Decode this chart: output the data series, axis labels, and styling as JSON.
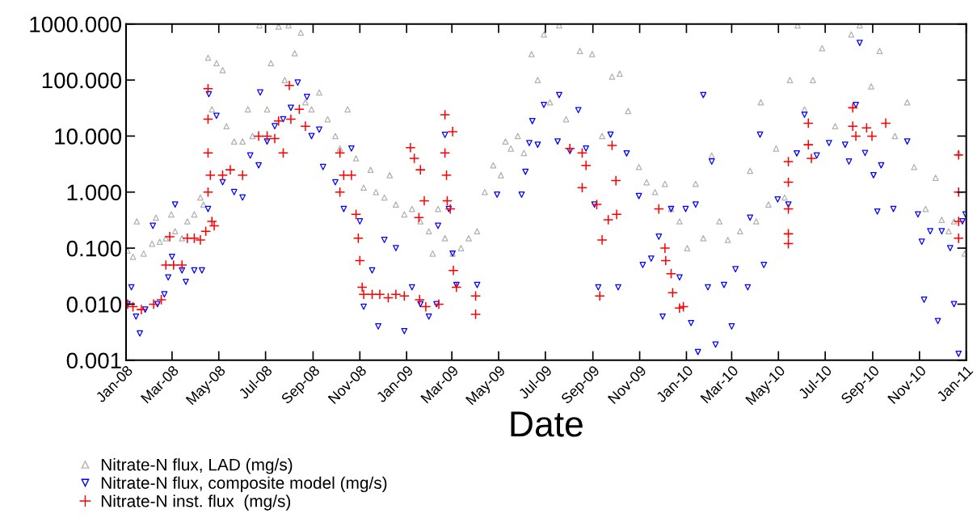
{
  "chart_data": {
    "type": "scatter",
    "xlabel": "Date",
    "log": "y",
    "grid": false,
    "legend": "bottom left",
    "xlim": [
      "2008-01-01",
      "2011-01-01"
    ],
    "ylim": [
      0.001,
      1000
    ],
    "xticks": [
      {
        "value": "2008-01-01",
        "label": "Jan-08"
      },
      {
        "value": "2008-03-01",
        "label": "Mar-08"
      },
      {
        "value": "2008-05-01",
        "label": "May-08"
      },
      {
        "value": "2008-07-01",
        "label": "Jul-08"
      },
      {
        "value": "2008-09-01",
        "label": "Sep-08"
      },
      {
        "value": "2008-11-01",
        "label": "Nov-08"
      },
      {
        "value": "2009-01-01",
        "label": "Jan-09"
      },
      {
        "value": "2009-03-01",
        "label": "Mar-09"
      },
      {
        "value": "2009-05-01",
        "label": "May-09"
      },
      {
        "value": "2009-07-01",
        "label": "Jul-09"
      },
      {
        "value": "2009-09-01",
        "label": "Sep-09"
      },
      {
        "value": "2009-11-01",
        "label": "Nov-09"
      },
      {
        "value": "2010-01-01",
        "label": "Jan-10"
      },
      {
        "value": "2010-03-01",
        "label": "Mar-10"
      },
      {
        "value": "2010-05-01",
        "label": "May-10"
      },
      {
        "value": "2010-07-01",
        "label": "Jul-10"
      },
      {
        "value": "2010-09-01",
        "label": "Sep-10"
      },
      {
        "value": "2010-11-01",
        "label": "Nov-10"
      },
      {
        "value": "2011-01-01",
        "label": "Jan-11"
      }
    ],
    "yticks": [
      {
        "value": 0.001,
        "label": "0.001"
      },
      {
        "value": 0.01,
        "label": "0.010"
      },
      {
        "value": 0.1,
        "label": "0.100"
      },
      {
        "value": 1,
        "label": "1.000"
      },
      {
        "value": 10,
        "label": "10.000"
      },
      {
        "value": 100,
        "label": "100.000"
      },
      {
        "value": 1000,
        "label": "1000.000"
      }
    ],
    "series": [
      {
        "name": "Nitrate-N flux, LAD (mg/s)",
        "color": "#b2b2b2",
        "marker": "triangle",
        "x": [
          "2008-01-03",
          "2008-01-10",
          "2008-01-15",
          "2008-01-24",
          "2008-02-04",
          "2008-02-09",
          "2008-02-14",
          "2008-02-22",
          "2008-02-29",
          "2008-03-05",
          "2008-03-14",
          "2008-03-21",
          "2008-03-30",
          "2008-04-07",
          "2008-04-11",
          "2008-04-17",
          "2008-04-22",
          "2008-04-28",
          "2008-05-06",
          "2008-05-11",
          "2008-05-21",
          "2008-06-01",
          "2008-06-08",
          "2008-06-14",
          "2008-06-23",
          "2008-07-03",
          "2008-07-08",
          "2008-07-18",
          "2008-07-26",
          "2008-07-31",
          "2008-08-08",
          "2008-08-16",
          "2008-08-22",
          "2008-08-30",
          "2008-09-09",
          "2008-09-20",
          "2008-09-30",
          "2008-10-06",
          "2008-10-16",
          "2008-10-27",
          "2008-11-06",
          "2008-11-15",
          "2008-11-22",
          "2008-12-03",
          "2008-12-10",
          "2008-12-18",
          "2008-12-29",
          "2009-01-08",
          "2009-01-19",
          "2009-01-30",
          "2009-02-04",
          "2009-02-11",
          "2009-02-20",
          "2009-03-02",
          "2009-03-13",
          "2009-03-23",
          "2009-04-03",
          "2009-04-13",
          "2009-04-24",
          "2009-05-04",
          "2009-05-10",
          "2009-05-17",
          "2009-05-26",
          "2009-06-03",
          "2009-06-13",
          "2009-06-21",
          "2009-06-29",
          "2009-07-07",
          "2009-07-19",
          "2009-07-28",
          "2009-08-15",
          "2009-08-31",
          "2009-09-13",
          "2009-09-26",
          "2009-10-06",
          "2009-10-17",
          "2009-10-31",
          "2009-11-10",
          "2009-11-21",
          "2009-12-04",
          "2009-12-12",
          "2009-12-23",
          "2010-01-02",
          "2010-01-13",
          "2010-01-23",
          "2010-02-03",
          "2010-02-13",
          "2010-02-24",
          "2010-03-12",
          "2010-03-25",
          "2010-04-02",
          "2010-04-08",
          "2010-04-18",
          "2010-04-28",
          "2010-05-09",
          "2010-05-16",
          "2010-05-26",
          "2010-06-04",
          "2010-06-15",
          "2010-06-27",
          "2010-07-14",
          "2010-08-04",
          "2010-08-15",
          "2010-08-30",
          "2010-09-10",
          "2010-09-30",
          "2010-10-16",
          "2010-10-25",
          "2010-11-09",
          "2010-11-22",
          "2010-11-30",
          "2010-12-09",
          "2010-12-16",
          "2010-12-22",
          "2010-12-30"
        ],
        "values": [
          0.09,
          0.07,
          0.3,
          0.08,
          0.12,
          0.35,
          0.13,
          0.15,
          0.4,
          0.2,
          0.15,
          0.3,
          0.4,
          0.8,
          0.6,
          250,
          30,
          200,
          150,
          15,
          8,
          8,
          30,
          10,
          950,
          30,
          200,
          900,
          100,
          950,
          300,
          700,
          40,
          30,
          60,
          20,
          10,
          6,
          30,
          4,
          1.2,
          2.5,
          1,
          0.8,
          2,
          0.6,
          0.4,
          0.5,
          0.3,
          0.2,
          0.08,
          0.5,
          0.15,
          0.08,
          0.1,
          0.15,
          0.2,
          1.0,
          3,
          2,
          8,
          6,
          10,
          5,
          290,
          100,
          650,
          40,
          950,
          20,
          330,
          290,
          10,
          115,
          130,
          28,
          2.8,
          1.5,
          1,
          1.4,
          0.5,
          0.3,
          0.1,
          1.4,
          0.15,
          4.5,
          0.3,
          0.14,
          0.2,
          2.4,
          0.3,
          40,
          0.6,
          6,
          0.8,
          100,
          950,
          30,
          100,
          370,
          15,
          650,
          950,
          77,
          330,
          10,
          40,
          2.8,
          0.5,
          1.8,
          0.32,
          0.2,
          0.3,
          5,
          0.08
        ]
      },
      {
        "name": "Nitrate-N flux, composite model (mg/s)",
        "color": "#0000ff",
        "marker": "triangle-down",
        "x": [
          "2008-01-03",
          "2008-01-08",
          "2008-01-14",
          "2008-01-19",
          "2008-01-26",
          "2008-02-05",
          "2008-02-11",
          "2008-02-20",
          "2008-02-25",
          "2008-03-01",
          "2008-03-05",
          "2008-03-14",
          "2008-03-19",
          "2008-03-30",
          "2008-04-09",
          "2008-04-17",
          "2008-04-18",
          "2008-04-28",
          "2008-05-06",
          "2008-05-21",
          "2008-06-01",
          "2008-06-11",
          "2008-06-22",
          "2008-06-24",
          "2008-07-03",
          "2008-07-13",
          "2008-07-24",
          "2008-08-03",
          "2008-08-12",
          "2008-08-24",
          "2008-08-30",
          "2008-09-09",
          "2008-09-14",
          "2008-09-30",
          "2008-10-11",
          "2008-10-21",
          "2008-11-01",
          "2008-11-06",
          "2008-11-17",
          "2008-11-25",
          "2008-12-03",
          "2008-12-18",
          "2008-12-29",
          "2009-01-08",
          "2009-01-19",
          "2009-01-30",
          "2009-02-09",
          "2009-02-11",
          "2009-02-20",
          "2009-02-25",
          "2009-03-02",
          "2009-03-07",
          "2009-04-03",
          "2009-04-29",
          "2009-05-31",
          "2009-06-05",
          "2009-06-10",
          "2009-06-14",
          "2009-06-21",
          "2009-06-29",
          "2009-07-17",
          "2009-07-19",
          "2009-08-02",
          "2009-08-13",
          "2009-08-23",
          "2009-09-03",
          "2009-09-08",
          "2009-09-24",
          "2009-10-04",
          "2009-10-15",
          "2009-10-31",
          "2009-11-05",
          "2009-11-16",
          "2009-11-26",
          "2009-12-01",
          "2009-12-12",
          "2009-12-23",
          "2009-12-31",
          "2010-01-07",
          "2010-01-13",
          "2010-01-16",
          "2010-01-23",
          "2010-01-29",
          "2010-02-03",
          "2010-02-08",
          "2010-02-19",
          "2010-03-01",
          "2010-03-06",
          "2010-03-22",
          "2010-03-25",
          "2010-04-07",
          "2010-04-12",
          "2010-04-30",
          "2010-05-14",
          "2010-05-25",
          "2010-06-04",
          "2010-06-20",
          "2010-07-06",
          "2010-07-27",
          "2010-08-01",
          "2010-08-10",
          "2010-08-15",
          "2010-08-22",
          "2010-09-02",
          "2010-09-07",
          "2010-09-12",
          "2010-09-28",
          "2010-10-16",
          "2010-10-30",
          "2010-11-04",
          "2010-11-07",
          "2010-11-15",
          "2010-11-25",
          "2010-11-30",
          "2010-12-11",
          "2010-12-16",
          "2010-12-22",
          "2010-12-27",
          "2010-12-31"
        ],
        "values": [
          0.01,
          0.02,
          0.006,
          0.003,
          0.008,
          0.25,
          0.01,
          0.015,
          0.03,
          0.07,
          0.6,
          0.04,
          0.025,
          0.04,
          0.04,
          0.5,
          56,
          23,
          1.5,
          1,
          0.8,
          4.5,
          3,
          60,
          8,
          15,
          20,
          32,
          90,
          50,
          10,
          13,
          2.8,
          1.5,
          0.5,
          6,
          0.3,
          0.009,
          0.04,
          0.004,
          0.14,
          0.1,
          0.0033,
          0.02,
          0.01,
          0.006,
          0.01,
          0.25,
          10.5,
          0.5,
          0.08,
          0.022,
          0.022,
          0.9,
          0.9,
          2.3,
          7.5,
          18.5,
          7,
          36,
          8,
          54,
          5.4,
          29,
          6,
          0.6,
          0.02,
          10.6,
          0.02,
          4.9,
          0.85,
          0.05,
          0.065,
          0.16,
          0.006,
          0.5,
          0.03,
          0.5,
          0.0046,
          0.6,
          0.0014,
          54,
          0.02,
          3.5,
          0.0019,
          0.022,
          0.004,
          0.042,
          0.02,
          0.35,
          10.6,
          0.05,
          0.74,
          0.6,
          4.9,
          24,
          4.5,
          7.5,
          7,
          3.5,
          36,
          460,
          5,
          2,
          0.45,
          3,
          0.5,
          8,
          0.4,
          0.13,
          0.012,
          0.2,
          0.005,
          0.2,
          0.1,
          0.01,
          0.0013,
          0.3,
          0.4
        ]
      },
      {
        "name": "Nitrate-N inst. flux  (mg/s)",
        "color": "#ff0000",
        "marker": "cross",
        "x": [
          "2008-01-03",
          "2008-01-10",
          "2008-01-21",
          "2008-02-06",
          "2008-02-16",
          "2008-02-22",
          "2008-02-27",
          "2008-03-03",
          "2008-03-14",
          "2008-03-21",
          "2008-03-30",
          "2008-04-07",
          "2008-04-14",
          "2008-04-17",
          "2008-04-17",
          "2008-04-17",
          "2008-04-17",
          "2008-04-20",
          "2008-04-22",
          "2008-04-25",
          "2008-05-06",
          "2008-05-16",
          "2008-06-01",
          "2008-06-22",
          "2008-07-03",
          "2008-07-13",
          "2008-07-18",
          "2008-07-24",
          "2008-08-01",
          "2008-08-03",
          "2008-08-14",
          "2008-08-22",
          "2008-10-06",
          "2008-10-06",
          "2008-10-11",
          "2008-10-21",
          "2008-10-27",
          "2008-10-30",
          "2008-11-01",
          "2008-11-04",
          "2008-11-06",
          "2008-11-17",
          "2008-11-27",
          "2008-12-08",
          "2008-12-18",
          "2008-12-29",
          "2009-01-06",
          "2009-01-11",
          "2009-01-19",
          "2009-01-17",
          "2009-01-24",
          "2009-01-18",
          "2009-01-26",
          "2009-02-12",
          "2009-02-20",
          "2009-02-20",
          "2009-02-22",
          "2009-02-23",
          "2009-02-27",
          "2009-03-02",
          "2009-03-03",
          "2009-03-07",
          "2009-04-01",
          "2009-04-01",
          "2009-08-02",
          "2009-08-18",
          "2009-08-23",
          "2009-08-18",
          "2009-09-06",
          "2009-09-13",
          "2009-09-10",
          "2009-09-21",
          "2009-09-26",
          "2009-10-01",
          "2009-10-02",
          "2009-11-26",
          "2009-12-04",
          "2009-12-05",
          "2009-12-12",
          "2009-12-14",
          "2009-12-23",
          "2009-12-28",
          "2010-05-14",
          "2010-05-14",
          "2010-05-14",
          "2010-05-14",
          "2010-05-14",
          "2010-06-09",
          "2010-06-09",
          "2010-06-13",
          "2010-08-06",
          "2010-08-06",
          "2010-08-10",
          "2010-08-24",
          "2010-08-31",
          "2010-09-18",
          "2010-12-22",
          "2010-12-22",
          "2010-12-22",
          "2010-12-22"
        ],
        "values": [
          0.01,
          0.009,
          0.008,
          0.01,
          0.012,
          0.05,
          0.16,
          0.05,
          0.05,
          0.15,
          0.15,
          0.14,
          0.2,
          70,
          20,
          5,
          1,
          2,
          0.3,
          0.25,
          2,
          2.5,
          2,
          10,
          10,
          9,
          18.6,
          5,
          80,
          20,
          30,
          15,
          5,
          1,
          2,
          2,
          0.4,
          0.15,
          0.06,
          0.02,
          0.015,
          0.015,
          0.015,
          0.013,
          0.015,
          0.014,
          6.2,
          4,
          2.5,
          0.35,
          0.7,
          0.012,
          0.009,
          0.01,
          24,
          5,
          2,
          0.7,
          0.5,
          12,
          0.04,
          0.02,
          0.014,
          0.0066,
          6,
          5,
          3,
          1.2,
          0.6,
          0.14,
          0.014,
          0.32,
          6.8,
          1.6,
          0.4,
          0.5,
          0.1,
          0.06,
          0.035,
          0.016,
          0.0085,
          0.009,
          3.5,
          1.5,
          0.5,
          0.18,
          0.12,
          17,
          7,
          4,
          32,
          15,
          10,
          14,
          10,
          17,
          4.6,
          1,
          0.3,
          0.15
        ]
      }
    ]
  }
}
